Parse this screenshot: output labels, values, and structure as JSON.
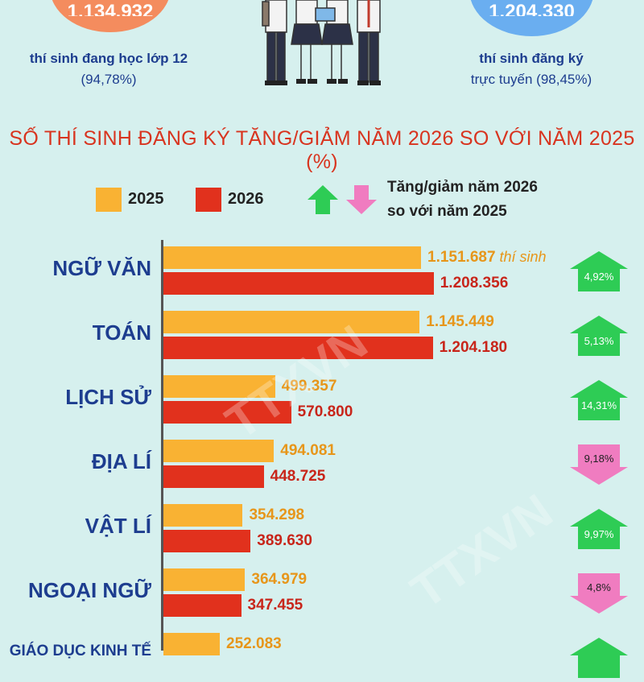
{
  "top_left_circle": {
    "value": "1.134.932",
    "caption_line1": "thí sinh đang học lớp 12",
    "caption_line2": "(94,78%)"
  },
  "top_right_circle": {
    "value": "1.204.330",
    "caption_line1": "thí sinh đăng ký",
    "caption_line2": "trực tuyến (98,45%)"
  },
  "colors": {
    "y2025": "#f9b233",
    "y2026": "#e1311d",
    "increase": "#2ecc55",
    "decrease": "#f07cc0",
    "navy": "#1d3d8f"
  },
  "chart_data": {
    "type": "bar",
    "title": "SỐ THÍ SINH ĐĂNG KÝ TĂNG/GIẢM NĂM 2026 SO VỚI NĂM 2025 (%)",
    "legend": {
      "series_2025": "2025",
      "series_2026": "2026",
      "change_line1": "Tăng/giảm năm 2026",
      "change_line2": "so với năm 2025"
    },
    "unit_label": "thí sinh",
    "categories": [
      "NGỮ VĂN",
      "TOÁN",
      "LỊCH SỬ",
      "ĐỊA LÍ",
      "VẬT LÍ",
      "NGOẠI NGỮ",
      "GIÁO DỤC KINH TẾ"
    ],
    "series": [
      {
        "name": "2025",
        "values": [
          1151687,
          1145449,
          499357,
          494081,
          354298,
          364979,
          252083
        ],
        "labels": [
          "1.151.687",
          "1.145.449",
          "499.357",
          "494.081",
          "354.298",
          "364.979",
          "252.083"
        ]
      },
      {
        "name": "2026",
        "values": [
          1208356,
          1204180,
          570800,
          448725,
          389630,
          347455,
          null
        ],
        "labels": [
          "1.208.356",
          "1.204.180",
          "570.800",
          "448.725",
          "389.630",
          "347.455",
          ""
        ]
      }
    ],
    "changes": [
      {
        "label": "4,92%",
        "direction": "up"
      },
      {
        "label": "5,13%",
        "direction": "up"
      },
      {
        "label": "14,31%",
        "direction": "up"
      },
      {
        "label": "9,18%",
        "direction": "down"
      },
      {
        "label": "9,97%",
        "direction": "up"
      },
      {
        "label": "4,8%",
        "direction": "down"
      },
      {
        "label": "",
        "direction": "up"
      }
    ]
  }
}
